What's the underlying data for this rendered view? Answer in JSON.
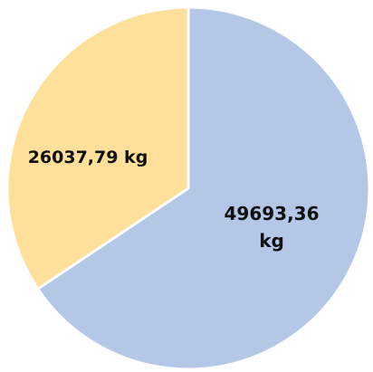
{
  "chart_data": {
    "type": "pie",
    "title": "",
    "legend": "none",
    "slices": [
      {
        "value": 49693.36,
        "label_lines": [
          "49693,36",
          "kg"
        ],
        "color": "#B4C7E7",
        "edge_color": "#8EA9DB"
      },
      {
        "value": 26037.79,
        "label_lines": [
          "26037,79 kg"
        ],
        "color": "#FFE09A",
        "edge_color": "#E8C26A"
      }
    ]
  }
}
